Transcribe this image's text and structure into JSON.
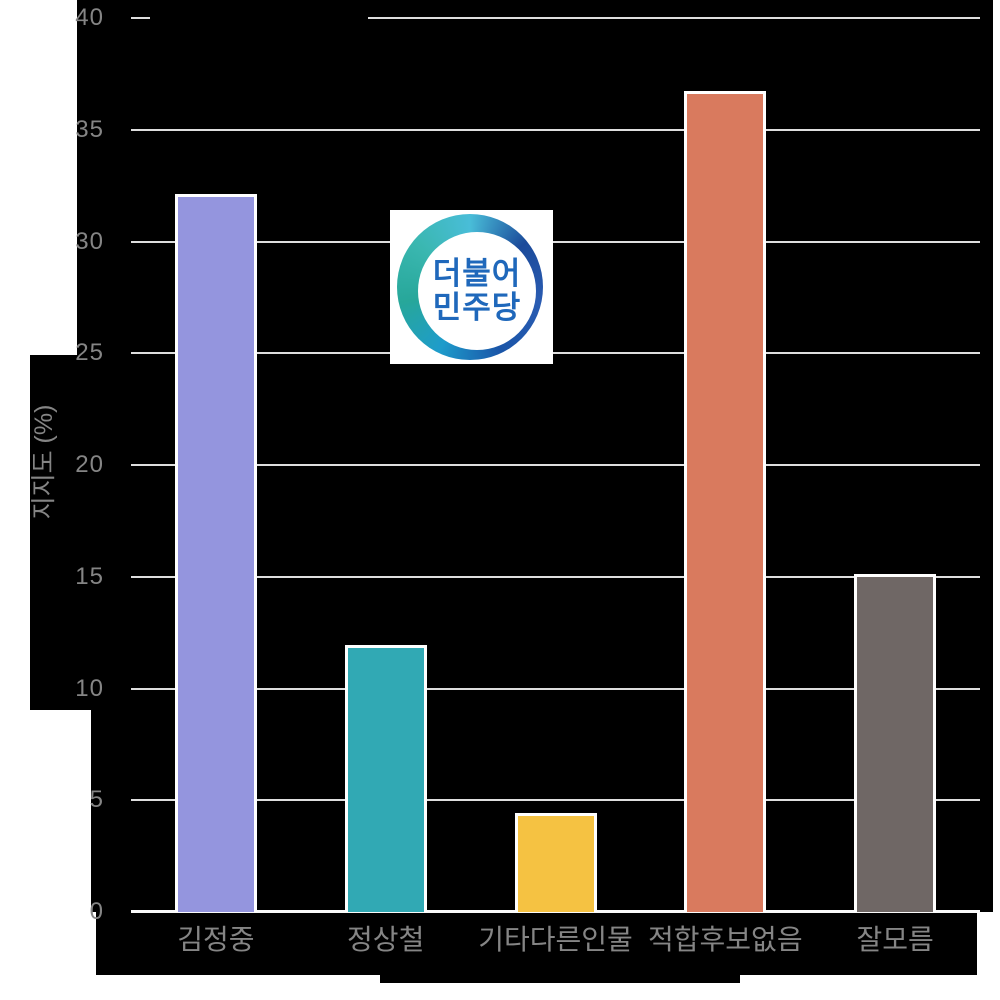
{
  "chart_data": {
    "type": "bar",
    "categories": [
      "김정중",
      "정상철",
      "기타다른인물",
      "적합후보없음",
      "잘모름"
    ],
    "values": [
      32.0,
      11.8,
      4.3,
      36.6,
      15.0
    ],
    "bar_colors": [
      "#9495de",
      "#31a9b4",
      "#f5c242",
      "#d97a5e",
      "#6f6765"
    ],
    "ylabel": "지지도 (%)",
    "ylim": [
      0,
      40
    ],
    "yticks": [
      0,
      5,
      10,
      15,
      20,
      25,
      30,
      35,
      40
    ],
    "grid": true,
    "legend_visible": false,
    "title_text_visible": false
  },
  "logo": {
    "party_name": "더불어민주당",
    "line1": "더불어",
    "line2": "민주당",
    "text_color": "#1f68bb",
    "ring_colors": [
      "#49bdd8",
      "#1b4a9a",
      "#2a5cb2",
      "#1a55a8",
      "#1e9ccb",
      "#27a79a",
      "#3ab7b0",
      "#49bdd8"
    ]
  },
  "colors": {
    "page_bg": "#ffffff",
    "chart_bg": "#000000",
    "gridline": "#dedede",
    "baseline": "#fafafa",
    "tick_text": "#858585",
    "bar_edge": "#ffffff"
  }
}
